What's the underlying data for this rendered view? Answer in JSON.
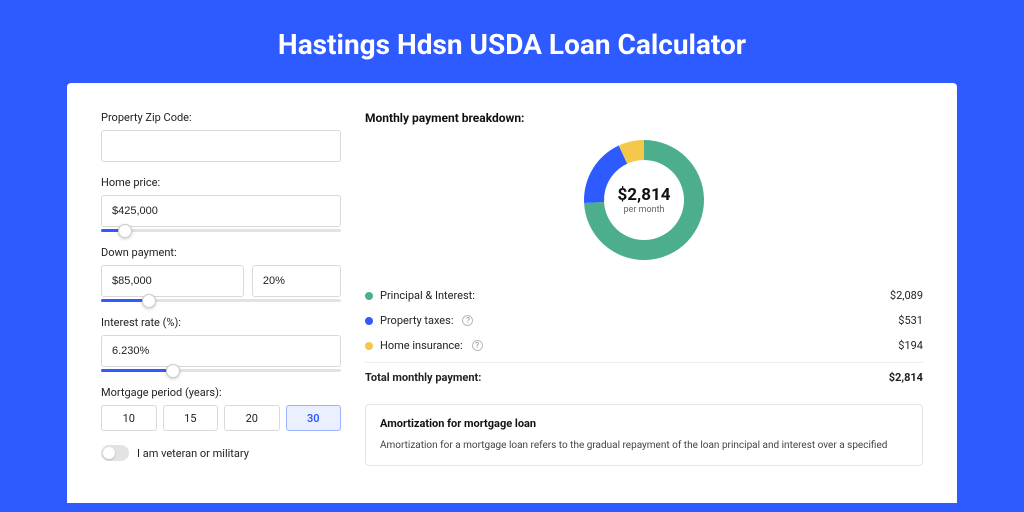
{
  "title": "Hastings Hdsn USDA Loan Calculator",
  "colors": {
    "page_bg": "#2e5bff",
    "card_bg": "#ffffff",
    "accent": "#2e5bff",
    "donut_principal": "#4cae8c",
    "donut_tax": "#2e5bff",
    "donut_insurance": "#f4c84a"
  },
  "form": {
    "zip_label": "Property Zip Code:",
    "zip_value": "",
    "home_price_label": "Home price:",
    "home_price_value": "$425,000",
    "home_price_slider_pct": 10,
    "down_label": "Down payment:",
    "down_value": "$85,000",
    "down_pct_value": "20%",
    "down_slider_pct": 20,
    "rate_label": "Interest rate (%):",
    "rate_value": "6.230%",
    "rate_slider_pct": 30,
    "period_label": "Mortgage period (years):",
    "period_options": [
      "10",
      "15",
      "20",
      "30"
    ],
    "period_active_index": 3,
    "veteran_label": "I am veteran or military",
    "veteran_on": false
  },
  "breakdown": {
    "title": "Monthly payment breakdown:",
    "donut_center_amount": "$2,814",
    "donut_center_sub": "per month",
    "donut_segments": [
      {
        "color": "#4cae8c",
        "pct": 74.2
      },
      {
        "color": "#2e5bff",
        "pct": 18.9
      },
      {
        "color": "#f4c84a",
        "pct": 6.9
      }
    ],
    "items": [
      {
        "dot": "#4cae8c",
        "label": "Principal & Interest:",
        "info": false,
        "value": "$2,089"
      },
      {
        "dot": "#2e5bff",
        "label": "Property taxes:",
        "info": true,
        "value": "$531"
      },
      {
        "dot": "#f4c84a",
        "label": "Home insurance:",
        "info": true,
        "value": "$194"
      }
    ],
    "total_label": "Total monthly payment:",
    "total_value": "$2,814"
  },
  "amortization": {
    "title": "Amortization for mortgage loan",
    "text": "Amortization for a mortgage loan refers to the gradual repayment of the loan principal and interest over a specified"
  }
}
